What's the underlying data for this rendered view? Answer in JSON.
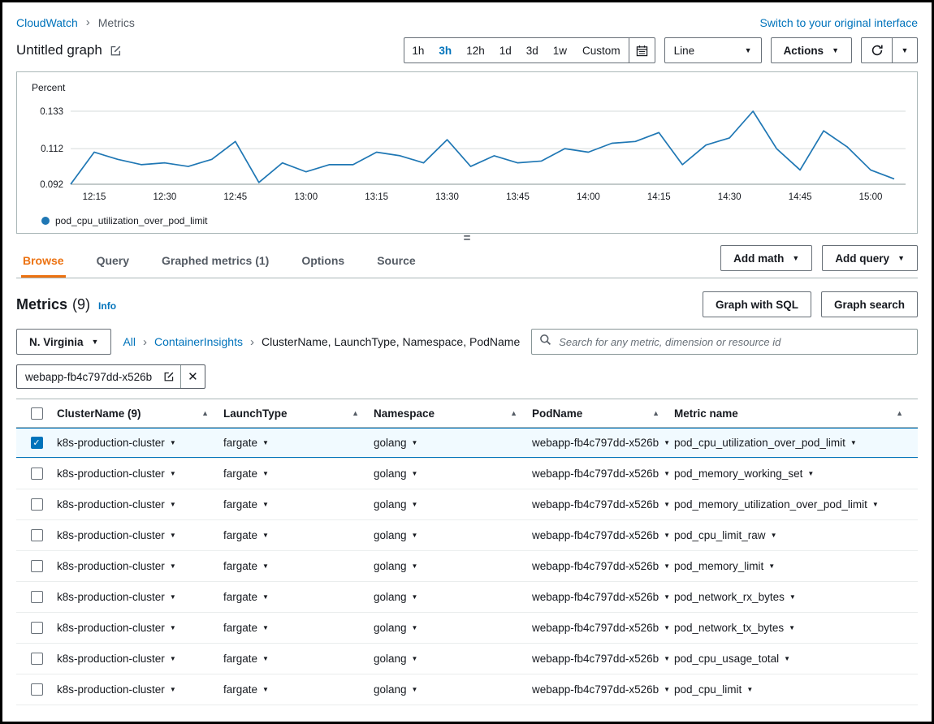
{
  "page": {
    "breadcrumb": {
      "root": "CloudWatch",
      "current": "Metrics",
      "separator": "›"
    },
    "switch_link": "Switch to your original interface"
  },
  "graph_header": {
    "title": "Untitled graph",
    "time_ranges": [
      "1h",
      "3h",
      "12h",
      "1d",
      "3d",
      "1w"
    ],
    "selected_range": "3h",
    "custom_label": "Custom",
    "line_type": "Line",
    "actions_label": "Actions"
  },
  "chart_data": {
    "type": "line",
    "unit_label": "Percent",
    "yticks": [
      0.133,
      0.112,
      0.092
    ],
    "ylim": [
      0.092,
      0.133
    ],
    "grid": true,
    "legend_position": "bottom-left",
    "x": [
      "12:10",
      "12:15",
      "12:20",
      "12:25",
      "12:30",
      "12:35",
      "12:40",
      "12:45",
      "12:50",
      "12:55",
      "13:00",
      "13:05",
      "13:10",
      "13:15",
      "13:20",
      "13:25",
      "13:30",
      "13:35",
      "13:40",
      "13:45",
      "13:50",
      "13:55",
      "14:00",
      "14:05",
      "14:10",
      "14:15",
      "14:20",
      "14:25",
      "14:30",
      "14:35",
      "14:40",
      "14:45",
      "14:50",
      "14:55",
      "15:00",
      "15:05"
    ],
    "x_axis_labels": [
      "12:15",
      "12:30",
      "12:45",
      "13:00",
      "13:15",
      "13:30",
      "13:45",
      "14:00",
      "14:15",
      "14:30",
      "14:45",
      "15:00"
    ],
    "series": [
      {
        "name": "pod_cpu_utilization_over_pod_limit",
        "color": "#1f77b4",
        "values": [
          0.092,
          0.11,
          0.106,
          0.103,
          0.104,
          0.102,
          0.106,
          0.116,
          0.093,
          0.104,
          0.099,
          0.103,
          0.103,
          0.11,
          0.108,
          0.104,
          0.117,
          0.102,
          0.108,
          0.104,
          0.105,
          0.112,
          0.11,
          0.115,
          0.116,
          0.121,
          0.103,
          0.114,
          0.118,
          0.133,
          0.112,
          0.1,
          0.122,
          0.113,
          0.1,
          0.095
        ]
      }
    ]
  },
  "tabs": {
    "items": [
      {
        "label": "Browse",
        "selected": true
      },
      {
        "label": "Query",
        "selected": false
      },
      {
        "label": "Graphed metrics (1)",
        "selected": false
      },
      {
        "label": "Options",
        "selected": false
      },
      {
        "label": "Source",
        "selected": false
      }
    ],
    "add_math_label": "Add math",
    "add_query_label": "Add query"
  },
  "metrics_section": {
    "title": "Metrics",
    "count": "(9)",
    "info_label": "Info",
    "graph_sql_label": "Graph with SQL",
    "graph_search_label": "Graph search",
    "region": "N. Virginia",
    "path": {
      "all": "All",
      "namespace": "ContainerInsights",
      "dimensions": "ClusterName, LaunchType, Namespace, PodName",
      "separator": "›"
    },
    "search_placeholder": "Search for any metric, dimension or resource id",
    "filter_chip": "webapp-fb4c797dd-x526b"
  },
  "table": {
    "headers": [
      "ClusterName (9)",
      "LaunchType",
      "Namespace",
      "PodName",
      "Metric name"
    ],
    "rows": [
      {
        "cluster": "k8s-production-cluster",
        "launch_type": "fargate",
        "namespace": "golang",
        "pod": "webapp-fb4c797dd-x526b",
        "metric": "pod_cpu_utilization_over_pod_limit",
        "selected": true
      },
      {
        "cluster": "k8s-production-cluster",
        "launch_type": "fargate",
        "namespace": "golang",
        "pod": "webapp-fb4c797dd-x526b",
        "metric": "pod_memory_working_set",
        "selected": false
      },
      {
        "cluster": "k8s-production-cluster",
        "launch_type": "fargate",
        "namespace": "golang",
        "pod": "webapp-fb4c797dd-x526b",
        "metric": "pod_memory_utilization_over_pod_limit",
        "selected": false
      },
      {
        "cluster": "k8s-production-cluster",
        "launch_type": "fargate",
        "namespace": "golang",
        "pod": "webapp-fb4c797dd-x526b",
        "metric": "pod_cpu_limit_raw",
        "selected": false
      },
      {
        "cluster": "k8s-production-cluster",
        "launch_type": "fargate",
        "namespace": "golang",
        "pod": "webapp-fb4c797dd-x526b",
        "metric": "pod_memory_limit",
        "selected": false
      },
      {
        "cluster": "k8s-production-cluster",
        "launch_type": "fargate",
        "namespace": "golang",
        "pod": "webapp-fb4c797dd-x526b",
        "metric": "pod_network_rx_bytes",
        "selected": false
      },
      {
        "cluster": "k8s-production-cluster",
        "launch_type": "fargate",
        "namespace": "golang",
        "pod": "webapp-fb4c797dd-x526b",
        "metric": "pod_network_tx_bytes",
        "selected": false
      },
      {
        "cluster": "k8s-production-cluster",
        "launch_type": "fargate",
        "namespace": "golang",
        "pod": "webapp-fb4c797dd-x526b",
        "metric": "pod_cpu_usage_total",
        "selected": false
      },
      {
        "cluster": "k8s-production-cluster",
        "launch_type": "fargate",
        "namespace": "golang",
        "pod": "webapp-fb4c797dd-x526b",
        "metric": "pod_cpu_limit",
        "selected": false
      }
    ]
  }
}
